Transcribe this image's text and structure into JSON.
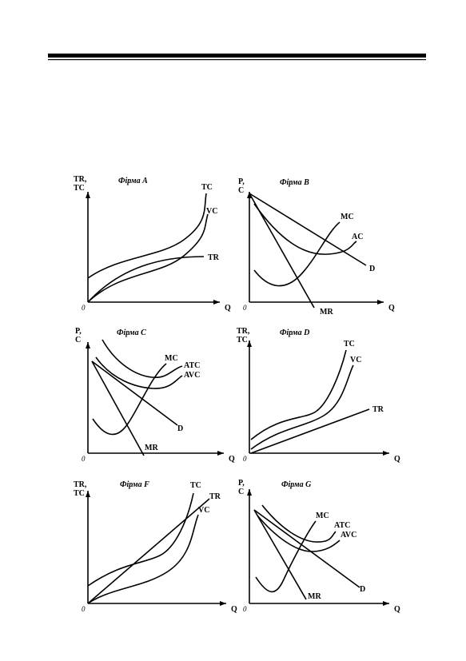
{
  "panels": [
    {
      "title": "Фірма A",
      "y_label": [
        "TR,",
        "TC"
      ],
      "x_label": "Q",
      "origin": "0",
      "curve_labels": [
        "TC",
        "VC",
        "TR"
      ]
    },
    {
      "title": "Фірма B",
      "y_label": [
        "P,",
        "C"
      ],
      "x_label": "Q",
      "origin": "0",
      "curve_labels": [
        "MC",
        "AC",
        "D",
        "MR"
      ]
    },
    {
      "title": "Фірма C",
      "y_label": [
        "P,",
        "C"
      ],
      "x_label": "Q",
      "origin": "0",
      "curve_labels": [
        "MC",
        "ATC",
        "AVC",
        "D",
        "MR"
      ]
    },
    {
      "title": "Фірма D",
      "y_label": [
        "TR,",
        "TC"
      ],
      "x_label": "Q",
      "origin": "0",
      "curve_labels": [
        "TC",
        "VC",
        "TR"
      ]
    },
    {
      "title": "Фірма F",
      "y_label": [
        "TR,",
        "TC"
      ],
      "x_label": "Q",
      "origin": "0",
      "curve_labels": [
        "TC",
        "TR",
        "VC"
      ]
    },
    {
      "title": "Фірма G",
      "y_label": [
        "P,",
        "C"
      ],
      "x_label": "Q",
      "origin": "0",
      "curve_labels": [
        "MC",
        "ATC",
        "AVC",
        "D",
        "MR"
      ]
    }
  ]
}
